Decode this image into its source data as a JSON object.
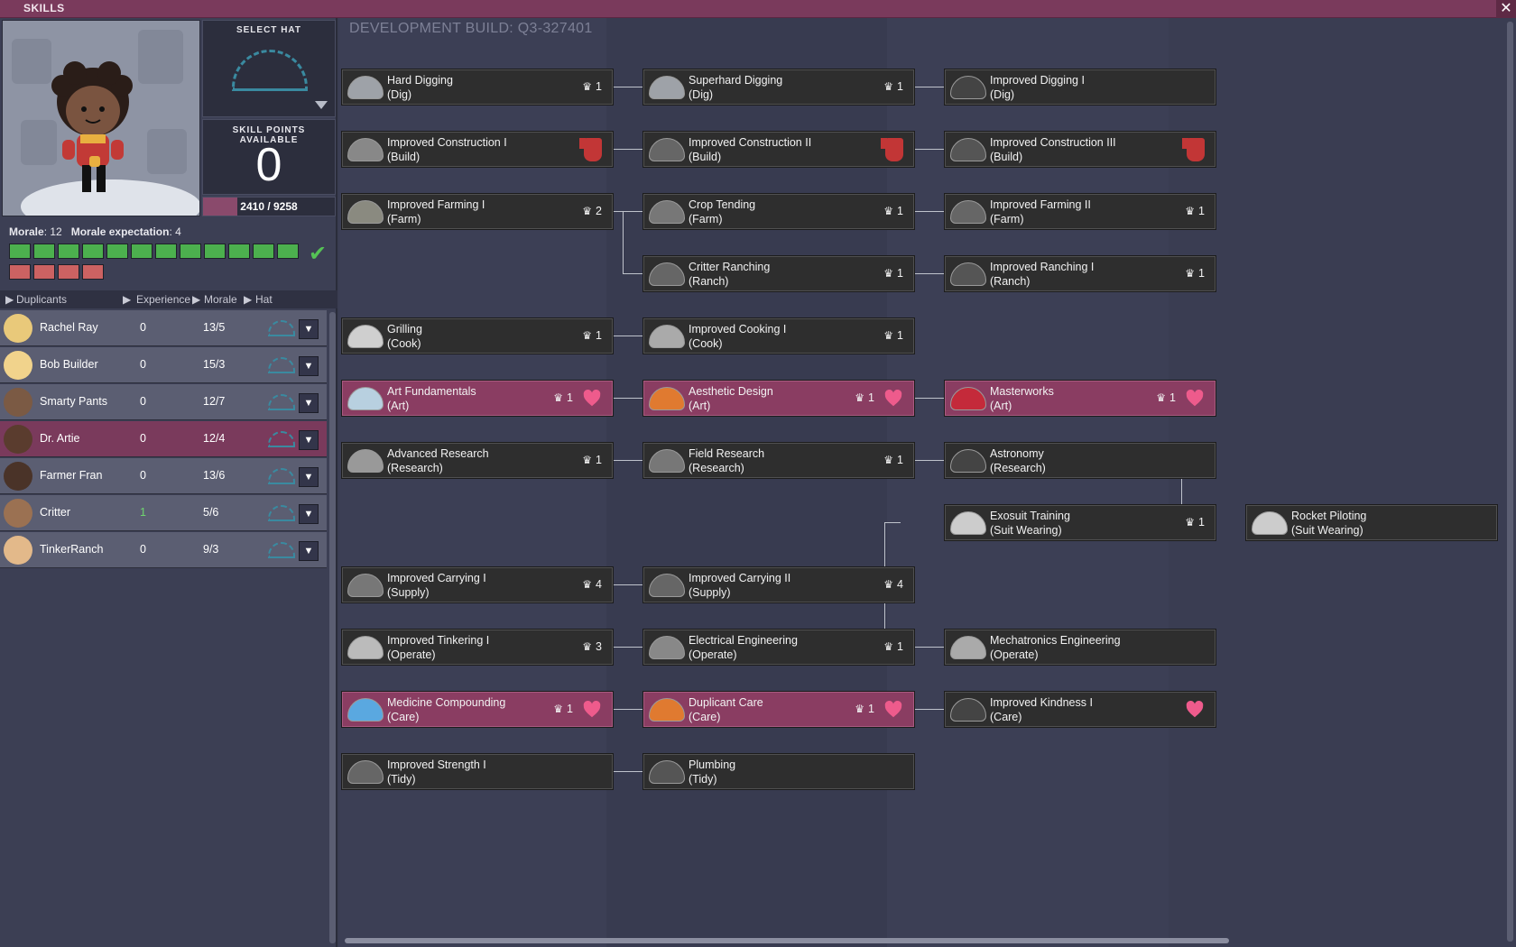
{
  "window": {
    "title": "SKILLS",
    "close": "✕"
  },
  "left": {
    "select_hat": "SELECT HAT",
    "skill_points_label": "SKILL POINTS AVAILABLE",
    "skill_points": "0",
    "xp_text": "2410 / 9258",
    "xp_fraction": 0.26,
    "morale_label": "Morale",
    "morale_value": "12",
    "morale_expectation_label": "Morale expectation",
    "morale_expectation_value": "4",
    "morale_green_count": 12,
    "morale_red_count": 4,
    "columns": {
      "duplicants": "Duplicants",
      "experience": "Experience",
      "morale": "Morale",
      "hat": "Hat"
    },
    "duplicants": [
      {
        "name": "Rachel Ray",
        "xp": "0",
        "morale": "13/5",
        "selected": false,
        "face": "#e9c97a"
      },
      {
        "name": "Bob Builder",
        "xp": "0",
        "morale": "15/3",
        "selected": false,
        "face": "#f1d38c"
      },
      {
        "name": "Smarty Pants",
        "xp": "0",
        "morale": "12/7",
        "selected": false,
        "face": "#7b5a44"
      },
      {
        "name": "Dr. Artie",
        "xp": "0",
        "morale": "12/4",
        "selected": true,
        "face": "#5a3c2e"
      },
      {
        "name": "Farmer Fran",
        "xp": "0",
        "morale": "13/6",
        "selected": false,
        "face": "#4a3328"
      },
      {
        "name": "Critter",
        "xp": "1",
        "morale": "5/6",
        "selected": false,
        "face": "#9b7152"
      },
      {
        "name": "TinkerRanch",
        "xp": "0",
        "morale": "9/3",
        "selected": false,
        "face": "#e3b98a"
      }
    ]
  },
  "tree": {
    "dev_build": "DEVELOPMENT BUILD: Q3-327401",
    "skills": [
      {
        "id": "hard-digging",
        "name": "Hard Digging",
        "sub": "(Dig)",
        "col": 0,
        "row": 0,
        "badge": "1",
        "mark": "none",
        "color": "#9ea2a8"
      },
      {
        "id": "superhard-digging",
        "name": "Superhard Digging",
        "sub": "(Dig)",
        "col": 1,
        "row": 0,
        "badge": "1",
        "mark": "none",
        "color": "#9ea2a8"
      },
      {
        "id": "improved-digging-1",
        "name": "Improved Digging I",
        "sub": "(Dig)",
        "col": 2,
        "row": 0,
        "badge": "",
        "mark": "none",
        "color": "#444"
      },
      {
        "id": "improved-construction-1",
        "name": "Improved Construction I",
        "sub": "(Build)",
        "col": 0,
        "row": 1,
        "badge": "",
        "mark": "thumb",
        "color": "#888"
      },
      {
        "id": "improved-construction-2",
        "name": "Improved Construction II",
        "sub": "(Build)",
        "col": 1,
        "row": 1,
        "badge": "",
        "mark": "thumb",
        "color": "#666"
      },
      {
        "id": "improved-construction-3",
        "name": "Improved Construction III",
        "sub": "(Build)",
        "col": 2,
        "row": 1,
        "badge": "",
        "mark": "thumb",
        "color": "#555"
      },
      {
        "id": "improved-farming-1",
        "name": "Improved Farming I",
        "sub": "(Farm)",
        "col": 0,
        "row": 2,
        "badge": "2",
        "mark": "none",
        "color": "#8a8a80"
      },
      {
        "id": "crop-tending",
        "name": "Crop Tending",
        "sub": "(Farm)",
        "col": 1,
        "row": 2,
        "badge": "1",
        "mark": "none",
        "color": "#777"
      },
      {
        "id": "improved-farming-2",
        "name": "Improved Farming II",
        "sub": "(Farm)",
        "col": 2,
        "row": 2,
        "badge": "1",
        "mark": "none",
        "color": "#666"
      },
      {
        "id": "critter-ranching",
        "name": "Critter Ranching",
        "sub": "(Ranch)",
        "col": 1,
        "row": 3,
        "badge": "1",
        "mark": "none",
        "color": "#666"
      },
      {
        "id": "improved-ranching-1",
        "name": "Improved Ranching I",
        "sub": "(Ranch)",
        "col": 2,
        "row": 3,
        "badge": "1",
        "mark": "none",
        "color": "#555"
      },
      {
        "id": "grilling",
        "name": "Grilling",
        "sub": "(Cook)",
        "col": 0,
        "row": 4,
        "badge": "1",
        "mark": "none",
        "color": "#cfcfcf"
      },
      {
        "id": "improved-cooking-1",
        "name": "Improved Cooking I",
        "sub": "(Cook)",
        "col": 1,
        "row": 4,
        "badge": "1",
        "mark": "none",
        "color": "#aaa"
      },
      {
        "id": "art-fundamentals",
        "name": "Art Fundamentals",
        "sub": "(Art)",
        "col": 0,
        "row": 5,
        "badge": "1",
        "mark": "heart",
        "art": true,
        "color": "#b8d0e0"
      },
      {
        "id": "aesthetic-design",
        "name": "Aesthetic Design",
        "sub": "(Art)",
        "col": 1,
        "row": 5,
        "badge": "1",
        "mark": "heart",
        "art": true,
        "color": "#e07a30"
      },
      {
        "id": "masterworks",
        "name": "Masterworks",
        "sub": "(Art)",
        "col": 2,
        "row": 5,
        "badge": "1",
        "mark": "heart",
        "art": true,
        "color": "#c42a3a"
      },
      {
        "id": "advanced-research",
        "name": "Advanced Research",
        "sub": "(Research)",
        "col": 0,
        "row": 6,
        "badge": "1",
        "mark": "none",
        "color": "#999"
      },
      {
        "id": "field-research",
        "name": "Field Research",
        "sub": "(Research)",
        "col": 1,
        "row": 6,
        "badge": "1",
        "mark": "none",
        "color": "#777"
      },
      {
        "id": "astronomy",
        "name": "Astronomy",
        "sub": "(Research)",
        "col": 2,
        "row": 6,
        "badge": "",
        "mark": "none",
        "color": "#444"
      },
      {
        "id": "exosuit-training",
        "name": "Exosuit Training",
        "sub": "(Suit Wearing)",
        "col": 2,
        "row": 7,
        "badge": "1",
        "mark": "none",
        "color": "#ccc"
      },
      {
        "id": "rocket-piloting",
        "name": "Rocket Piloting",
        "sub": "(Suit Wearing)",
        "col": 3,
        "row": 7,
        "badge": "",
        "mark": "none",
        "color": "#ccc"
      },
      {
        "id": "improved-carrying-1",
        "name": "Improved Carrying I",
        "sub": "(Supply)",
        "col": 0,
        "row": 8,
        "badge": "4",
        "mark": "none",
        "color": "#777"
      },
      {
        "id": "improved-carrying-2",
        "name": "Improved Carrying II",
        "sub": "(Supply)",
        "col": 1,
        "row": 8,
        "badge": "4",
        "mark": "none",
        "color": "#666"
      },
      {
        "id": "improved-tinkering-1",
        "name": "Improved Tinkering I",
        "sub": "(Operate)",
        "col": 0,
        "row": 9,
        "badge": "3",
        "mark": "none",
        "color": "#bbb"
      },
      {
        "id": "electrical-engineering",
        "name": "Electrical Engineering",
        "sub": "(Operate)",
        "col": 1,
        "row": 9,
        "badge": "1",
        "mark": "none",
        "color": "#888"
      },
      {
        "id": "mechatronics-engineering",
        "name": "Mechatronics Engineering",
        "sub": "(Operate)",
        "col": 2,
        "row": 9,
        "badge": "",
        "mark": "none",
        "color": "#aaa"
      },
      {
        "id": "medicine-compounding",
        "name": "Medicine Compounding",
        "sub": "(Care)",
        "col": 0,
        "row": 10,
        "badge": "1",
        "mark": "heart",
        "art": true,
        "color": "#5aa8e0"
      },
      {
        "id": "duplicant-care",
        "name": "Duplicant Care",
        "sub": "(Care)",
        "col": 1,
        "row": 10,
        "badge": "1",
        "mark": "heart",
        "art": true,
        "color": "#e07a30"
      },
      {
        "id": "improved-kindness-1",
        "name": "Improved Kindness I",
        "sub": "(Care)",
        "col": 2,
        "row": 10,
        "badge": "",
        "mark": "heart",
        "color": "#444"
      },
      {
        "id": "improved-strength-1",
        "name": "Improved Strength I",
        "sub": "(Tidy)",
        "col": 0,
        "row": 11,
        "badge": "",
        "mark": "none",
        "color": "#666"
      },
      {
        "id": "plumbing",
        "name": "Plumbing",
        "sub": "(Tidy)",
        "col": 1,
        "row": 11,
        "badge": "",
        "mark": "none",
        "color": "#555"
      }
    ]
  }
}
